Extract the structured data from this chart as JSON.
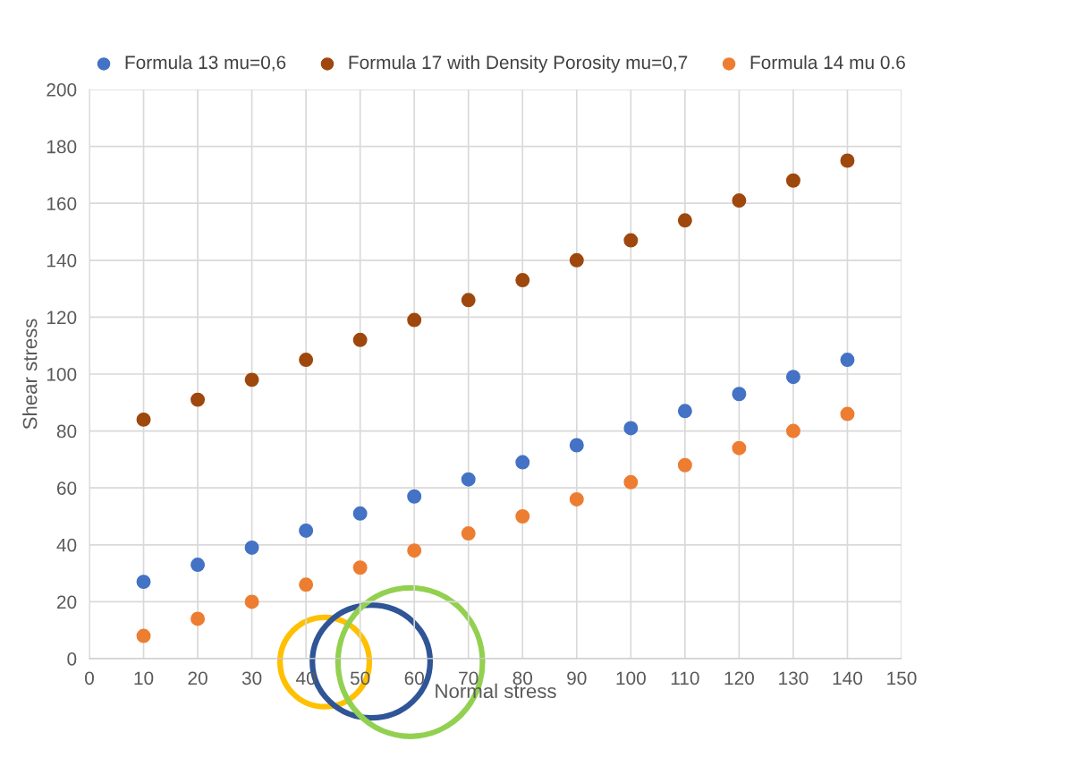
{
  "chart_data": {
    "type": "scatter",
    "xlabel": "Normal stress",
    "ylabel": "Shear stress",
    "x": [
      10,
      20,
      30,
      40,
      50,
      60,
      70,
      80,
      90,
      100,
      110,
      120,
      130,
      140
    ],
    "series": [
      {
        "name": "Formula 13 mu=0,6",
        "color": "#4472c4",
        "values": [
          27,
          33,
          39,
          45,
          51,
          57,
          63,
          69,
          75,
          81,
          87,
          93,
          99,
          105
        ]
      },
      {
        "name": "Formula 17 with Density Porosity mu=0,7",
        "color": "#9e480e",
        "values": [
          84,
          91,
          98,
          105,
          112,
          119,
          126,
          133,
          140,
          147,
          154,
          161,
          168,
          175
        ]
      },
      {
        "name": "Formula 14 mu 0.6",
        "color": "#ed7d31",
        "values": [
          8,
          14,
          20,
          26,
          32,
          38,
          44,
          50,
          56,
          62,
          68,
          74,
          80,
          86
        ]
      }
    ],
    "xlim": [
      0,
      150
    ],
    "xticks": [
      0,
      10,
      20,
      30,
      40,
      50,
      60,
      70,
      80,
      90,
      100,
      110,
      120,
      130,
      140,
      150
    ],
    "ylim": [
      0,
      200
    ],
    "yticks": [
      0,
      20,
      40,
      60,
      80,
      100,
      120,
      140,
      160,
      180,
      200
    ],
    "grid": true,
    "legend": "top",
    "marker": "circle"
  }
}
